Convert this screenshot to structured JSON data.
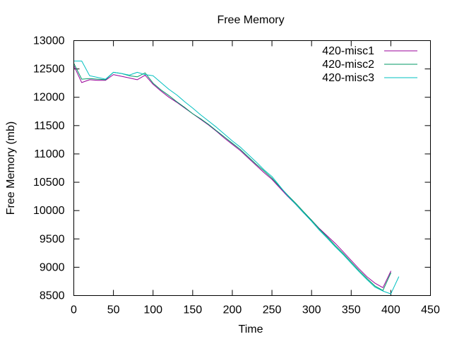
{
  "chart_data": {
    "type": "line",
    "title": "Free Memory",
    "xlabel": "Time",
    "ylabel": "Free Memory (mb)",
    "xlim": [
      0,
      450
    ],
    "ylim": [
      8500,
      13000
    ],
    "xticks": [
      0,
      50,
      100,
      150,
      200,
      250,
      300,
      350,
      400,
      450
    ],
    "yticks": [
      8500,
      9000,
      9500,
      10000,
      10500,
      11000,
      11500,
      12000,
      12500,
      13000
    ],
    "grid": false,
    "legend_position": "top-right",
    "series": [
      {
        "name": "420-misc1",
        "color": "#990099",
        "x": [
          0,
          10,
          20,
          30,
          40,
          50,
          60,
          70,
          80,
          90,
          100,
          110,
          120,
          130,
          140,
          150,
          160,
          170,
          180,
          190,
          200,
          210,
          220,
          230,
          240,
          250,
          260,
          270,
          280,
          290,
          300,
          310,
          320,
          330,
          340,
          350,
          360,
          370,
          380,
          390,
          400
        ],
        "y": [
          12560,
          12260,
          12310,
          12300,
          12300,
          12400,
          12370,
          12340,
          12310,
          12390,
          12230,
          12110,
          12000,
          11910,
          11810,
          11710,
          11610,
          11510,
          11400,
          11280,
          11170,
          11060,
          10930,
          10800,
          10670,
          10550,
          10400,
          10250,
          10110,
          9960,
          9830,
          9680,
          9550,
          9420,
          9270,
          9120,
          8970,
          8830,
          8720,
          8640,
          8930
        ]
      },
      {
        "name": "420-misc2",
        "color": "#009966",
        "x": [
          0,
          10,
          20,
          30,
          40,
          50,
          60,
          70,
          80,
          90,
          100,
          110,
          120,
          130,
          140,
          150,
          160,
          170,
          180,
          190,
          200,
          210,
          220,
          230,
          240,
          250,
          260,
          270,
          280,
          290,
          300,
          310,
          320,
          330,
          340,
          350,
          360,
          370,
          380,
          390,
          400
        ],
        "y": [
          12600,
          12320,
          12330,
          12320,
          12310,
          12440,
          12420,
          12380,
          12360,
          12430,
          12250,
          12130,
          12030,
          11920,
          11820,
          11710,
          11620,
          11520,
          11410,
          11300,
          11190,
          11080,
          10950,
          10820,
          10700,
          10570,
          10420,
          10270,
          10130,
          9980,
          9830,
          9670,
          9530,
          9380,
          9240,
          9090,
          8940,
          8800,
          8670,
          8590,
          8900
        ]
      },
      {
        "name": "420-misc3",
        "color": "#00c0c0",
        "x": [
          0,
          10,
          20,
          30,
          40,
          50,
          60,
          70,
          80,
          90,
          100,
          110,
          120,
          130,
          140,
          150,
          160,
          170,
          180,
          190,
          200,
          210,
          220,
          230,
          240,
          250,
          260,
          270,
          280,
          290,
          300,
          310,
          320,
          330,
          340,
          350,
          360,
          370,
          380,
          390,
          400,
          410
        ],
        "y": [
          12640,
          12640,
          12380,
          12350,
          12320,
          12440,
          12420,
          12390,
          12440,
          12400,
          12380,
          12260,
          12140,
          12040,
          11920,
          11810,
          11690,
          11580,
          11470,
          11350,
          11230,
          11120,
          10990,
          10860,
          10720,
          10600,
          10430,
          10260,
          10110,
          9960,
          9810,
          9650,
          9510,
          9360,
          9220,
          9070,
          8920,
          8780,
          8650,
          8580,
          8530,
          8830
        ]
      }
    ]
  }
}
